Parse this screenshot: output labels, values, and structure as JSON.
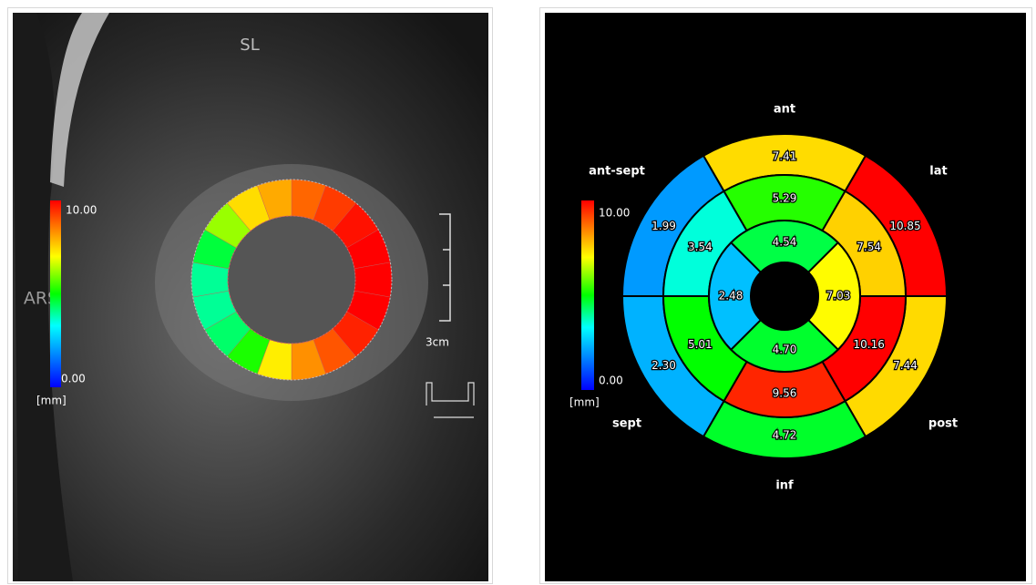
{
  "left_panel": {
    "orientation_label": "SL",
    "view_label": "ARS",
    "colorbar": {
      "max": {
        "value": 10,
        "label": "10.00"
      },
      "min": {
        "value": 0,
        "label": "0.00"
      },
      "unit": "[mm]"
    },
    "scale_label": "3cm",
    "ring_values": [
      8.8,
      9.3,
      9.8,
      10,
      10,
      10,
      9.6,
      9.0,
      8.3,
      7.2,
      5.2,
      4.3,
      4.0,
      4.0,
      4.6,
      6.2,
      7.4,
      8.0
    ]
  },
  "right_panel": {
    "colorbar": {
      "max": {
        "value": 10,
        "label": "10.00"
      },
      "min": {
        "value": 0,
        "label": "0.00"
      },
      "unit": "[mm]"
    },
    "sector_labels": [
      "ant",
      "lat",
      "post",
      "inf",
      "sept",
      "ant-sept"
    ],
    "outer_ring": {
      "values": [
        7.41,
        10.85,
        7.44,
        4.72,
        2.3,
        1.99
      ],
      "value_labels": [
        "7.41",
        "10.85",
        "7.44",
        "4.72",
        "2.30",
        "1.99"
      ]
    },
    "middle_ring": {
      "values": [
        5.29,
        7.54,
        10.16,
        9.56,
        5.01,
        3.54
      ],
      "value_labels": [
        "5.29",
        "7.54",
        "10.16",
        "9.56",
        "5.01",
        "3.54"
      ]
    },
    "inner_ring": {
      "values": [
        4.54,
        7.03,
        4.7,
        2.48
      ],
      "value_labels": [
        "4.54",
        "7.03",
        "4.70",
        "2.48"
      ]
    }
  }
}
